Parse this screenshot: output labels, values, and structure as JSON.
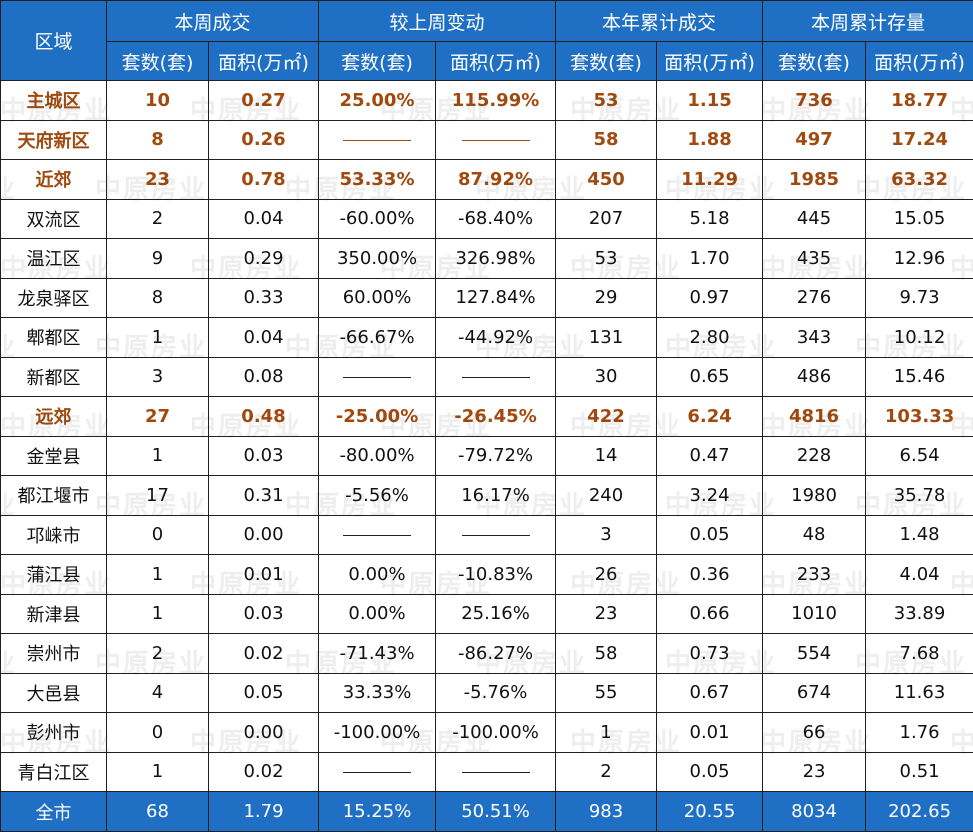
{
  "header": {
    "region": "区域",
    "groups": [
      "本周成交",
      "较上周变动",
      "本年累计成交",
      "本周累计存量"
    ],
    "sub": [
      "套数(套)",
      "面积(万㎡)",
      "套数(套)",
      "面积(万㎡)",
      "套数(套)",
      "面积(万㎡)",
      "套数(套)",
      "面积(万㎡)"
    ]
  },
  "rows": [
    {
      "type": "sum",
      "cells": [
        "主城区",
        "10",
        "0.27",
        "25.00%",
        "115.99%",
        "53",
        "1.15",
        "736",
        "18.77"
      ]
    },
    {
      "type": "sum",
      "cells": [
        "天府新区",
        "8",
        "0.26",
        "——",
        "——",
        "58",
        "1.88",
        "497",
        "17.24"
      ]
    },
    {
      "type": "sum",
      "cells": [
        "近郊",
        "23",
        "0.78",
        "53.33%",
        "87.92%",
        "450",
        "11.29",
        "1985",
        "63.32"
      ]
    },
    {
      "type": "normal",
      "cells": [
        "双流区",
        "2",
        "0.04",
        "-60.00%",
        "-68.40%",
        "207",
        "5.18",
        "445",
        "15.05"
      ]
    },
    {
      "type": "normal",
      "cells": [
        "温江区",
        "9",
        "0.29",
        "350.00%",
        "326.98%",
        "53",
        "1.70",
        "435",
        "12.96"
      ]
    },
    {
      "type": "normal",
      "cells": [
        "龙泉驿区",
        "8",
        "0.33",
        "60.00%",
        "127.84%",
        "29",
        "0.97",
        "276",
        "9.73"
      ]
    },
    {
      "type": "normal",
      "cells": [
        "郫都区",
        "1",
        "0.04",
        "-66.67%",
        "-44.92%",
        "131",
        "2.80",
        "343",
        "10.12"
      ]
    },
    {
      "type": "normal",
      "cells": [
        "新都区",
        "3",
        "0.08",
        "——",
        "——",
        "30",
        "0.65",
        "486",
        "15.46"
      ]
    },
    {
      "type": "sum",
      "cells": [
        "远郊",
        "27",
        "0.48",
        "-25.00%",
        "-26.45%",
        "422",
        "6.24",
        "4816",
        "103.33"
      ]
    },
    {
      "type": "normal",
      "cells": [
        "金堂县",
        "1",
        "0.03",
        "-80.00%",
        "-79.72%",
        "14",
        "0.47",
        "228",
        "6.54"
      ]
    },
    {
      "type": "normal",
      "cells": [
        "都江堰市",
        "17",
        "0.31",
        "-5.56%",
        "16.17%",
        "240",
        "3.24",
        "1980",
        "35.78"
      ]
    },
    {
      "type": "normal",
      "cells": [
        "邛崃市",
        "0",
        "0.00",
        "——",
        "——",
        "3",
        "0.05",
        "48",
        "1.48"
      ]
    },
    {
      "type": "normal",
      "cells": [
        "蒲江县",
        "1",
        "0.01",
        "0.00%",
        "-10.83%",
        "26",
        "0.36",
        "233",
        "4.04"
      ]
    },
    {
      "type": "normal",
      "cells": [
        "新津县",
        "1",
        "0.03",
        "0.00%",
        "25.16%",
        "23",
        "0.66",
        "1010",
        "33.89"
      ]
    },
    {
      "type": "normal",
      "cells": [
        "崇州市",
        "2",
        "0.02",
        "-71.43%",
        "-86.27%",
        "58",
        "0.73",
        "554",
        "7.68"
      ]
    },
    {
      "type": "normal",
      "cells": [
        "大邑县",
        "4",
        "0.05",
        "33.33%",
        "-5.76%",
        "55",
        "0.67",
        "674",
        "11.63"
      ]
    },
    {
      "type": "normal",
      "cells": [
        "彭州市",
        "0",
        "0.00",
        "-100.00%",
        "-100.00%",
        "1",
        "0.01",
        "66",
        "1.76"
      ]
    },
    {
      "type": "normal",
      "cells": [
        "青白江区",
        "1",
        "0.02",
        "——",
        "——",
        "2",
        "0.05",
        "23",
        "0.51"
      ]
    },
    {
      "type": "total",
      "cells": [
        "全市",
        "68",
        "1.79",
        "15.25%",
        "50.51%",
        "983",
        "20.55",
        "8034",
        "202.65"
      ]
    }
  ],
  "watermark": "中原房业",
  "colors": {
    "header": "#1f6fc5",
    "sum_text": "#a04a0f"
  }
}
